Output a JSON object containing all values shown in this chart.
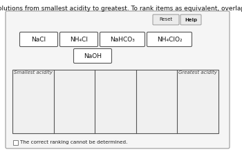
{
  "title": "Rank solutions from smallest acidity to greatest. To rank items as equivalent, overlap them.",
  "title_fontsize": 6.5,
  "outer_border_color": "#999999",
  "card_border_color": "#555555",
  "card_bg": "#ffffff",
  "card_row1": [
    "NaCl",
    "NH₄Cl",
    "NaHCO₃",
    "NH₄ClO₂"
  ],
  "card_row2": [
    "NaOH"
  ],
  "reset_label": "Reset",
  "help_label": "Help",
  "smallest_label": "Smallest acidity",
  "greatest_label": "Greatest acidity",
  "checkbox_label": "The correct ranking cannot be determined.",
  "num_slots": 5,
  "slot_border_color": "#555555",
  "slot_bg": "#f0f0f0",
  "panel_bg": "#f5f5f5",
  "fig_bg": "#ffffff"
}
